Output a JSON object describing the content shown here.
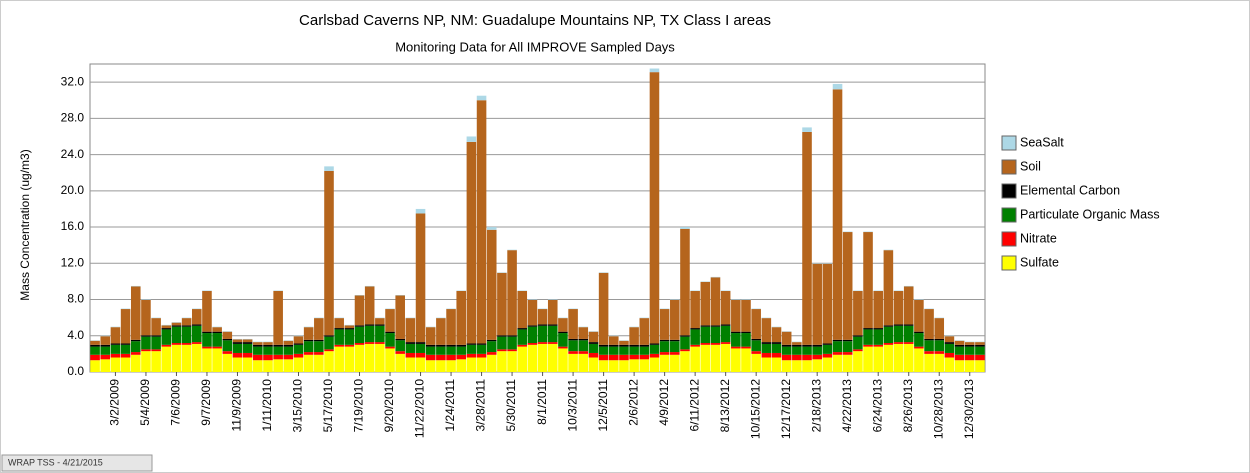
{
  "chart_data": {
    "type": "stacked_bar",
    "title": "Carlsbad Caverns NP, NM: Guadalupe Mountains NP, TX Class I areas",
    "subtitle": "Monitoring Data for All IMPROVE Sampled Days",
    "y_label": "Mass Concentration (ug/m3)",
    "footer": "WRAP TSS - 4/21/2015",
    "categories": [
      null,
      null,
      "3/2/2009",
      null,
      null,
      "5/4/2009",
      null,
      null,
      "7/6/2009",
      null,
      null,
      "9/7/2009",
      null,
      null,
      "11/9/2009",
      null,
      null,
      "1/11/2010",
      null,
      null,
      "3/15/2010",
      null,
      null,
      "5/17/2010",
      null,
      null,
      "7/19/2010",
      null,
      null,
      "9/20/2010",
      null,
      null,
      "11/22/2010",
      null,
      null,
      "1/24/2011",
      null,
      null,
      "3/28/2011",
      null,
      null,
      "5/30/2011",
      null,
      null,
      "8/1/2011",
      null,
      null,
      "10/3/2011",
      null,
      null,
      "12/5/2011",
      null,
      null,
      "2/6/2012",
      null,
      null,
      "4/9/2012",
      null,
      null,
      "6/11/2012",
      null,
      null,
      "8/13/2012",
      null,
      null,
      "10/15/2012",
      null,
      null,
      "12/17/2012",
      null,
      null,
      "2/18/2013",
      null,
      null,
      "4/22/2013",
      null,
      null,
      "6/24/2013",
      null,
      null,
      "8/26/2013",
      null,
      null,
      "10/28/2013",
      null,
      null,
      "12/30/2013",
      null
    ],
    "series": [
      {
        "name": "SeaSalt",
        "color": "#add8e6",
        "values": [
          0.05,
          0.05,
          0.05,
          0.05,
          0.05,
          0.05,
          0.05,
          0.05,
          0.05,
          0.05,
          0.05,
          0.05,
          0.05,
          0.05,
          0.05,
          0.05,
          0.05,
          0.05,
          0.05,
          0.05,
          0.05,
          0.05,
          0.05,
          0.5,
          0.05,
          0.05,
          0.05,
          0.05,
          0.05,
          0.05,
          0.05,
          0.05,
          0.5,
          0.05,
          0.05,
          0.05,
          0.05,
          0.6,
          0.5,
          0.3,
          0.05,
          0.05,
          0.05,
          0.05,
          0.05,
          0.05,
          0.05,
          0.05,
          0.05,
          0.05,
          0.05,
          0.05,
          0.05,
          0.05,
          0.05,
          0.4,
          0.05,
          0.05,
          0.2,
          0.05,
          0.05,
          0.05,
          0.05,
          0.05,
          0.05,
          0.05,
          0.05,
          0.05,
          0.05,
          0.05,
          0.5,
          0.05,
          0.05,
          0.6,
          0.05,
          0.05,
          0.05,
          0.05,
          0.05,
          0.05,
          0.05,
          0.05,
          0.05,
          0.05,
          0.05,
          0.05,
          0.05,
          0.05
        ]
      },
      {
        "name": "Soil",
        "color": "#b5651d",
        "values": [
          0.45,
          0.95,
          1.8,
          3.8,
          5.9,
          3.9,
          1.9,
          0.3,
          0.3,
          0.8,
          1.7,
          4.5,
          0.5,
          0.8,
          0.3,
          0.3,
          0.3,
          0.3,
          5.95,
          0.45,
          0.8,
          1.4,
          2.4,
          18.15,
          1.1,
          0.3,
          3.3,
          4.2,
          0.7,
          2.5,
          4.8,
          2.65,
          14.2,
          1.95,
          2.95,
          3.95,
          5.95,
          22.25,
          26.85,
          12.15,
          6.9,
          9.4,
          4.1,
          2.8,
          1.7,
          2.7,
          1.5,
          3.3,
          1.3,
          1.15,
          7.95,
          0.95,
          0.45,
          1.95,
          2.95,
          29.95,
          3.4,
          4.4,
          11.75,
          4.1,
          4.8,
          5.3,
          3.7,
          3.5,
          3.5,
          3.3,
          2.65,
          1.65,
          1.45,
          0.3,
          23.5,
          8.95,
          8.8,
          27.65,
          11.9,
          4.9,
          10.6,
          4.1,
          8.3,
          3.7,
          4.2,
          3.5,
          3.3,
          2.3,
          0.65,
          0.45,
          0.3,
          0.3
        ]
      },
      {
        "name": "Elemental Carbon",
        "color": "#000000",
        "values": [
          0.2,
          0.2,
          0.15,
          0.15,
          0.15,
          0.15,
          0.15,
          0.15,
          0.15,
          0.15,
          0.15,
          0.15,
          0.15,
          0.15,
          0.2,
          0.2,
          0.2,
          0.2,
          0.2,
          0.2,
          0.15,
          0.15,
          0.15,
          0.15,
          0.15,
          0.15,
          0.15,
          0.15,
          0.15,
          0.15,
          0.15,
          0.2,
          0.2,
          0.2,
          0.2,
          0.2,
          0.2,
          0.15,
          0.15,
          0.15,
          0.15,
          0.15,
          0.15,
          0.15,
          0.15,
          0.15,
          0.15,
          0.15,
          0.15,
          0.2,
          0.2,
          0.2,
          0.2,
          0.2,
          0.2,
          0.15,
          0.15,
          0.15,
          0.15,
          0.15,
          0.15,
          0.15,
          0.15,
          0.15,
          0.15,
          0.15,
          0.2,
          0.2,
          0.2,
          0.2,
          0.2,
          0.2,
          0.15,
          0.15,
          0.15,
          0.15,
          0.15,
          0.15,
          0.15,
          0.15,
          0.15,
          0.15,
          0.15,
          0.15,
          0.2,
          0.2,
          0.2,
          0.2
        ]
      },
      {
        "name": "Particulate Organic Mass",
        "color": "#008000",
        "values": [
          0.9,
          0.9,
          1.0,
          1.0,
          1.2,
          1.4,
          1.4,
          1.7,
          1.8,
          1.8,
          1.8,
          1.5,
          1.5,
          1.2,
          1.0,
          1.0,
          0.9,
          0.9,
          0.9,
          0.9,
          1.0,
          1.2,
          1.2,
          1.4,
          1.7,
          1.7,
          1.8,
          1.8,
          1.8,
          1.5,
          1.2,
          1.0,
          1.0,
          0.9,
          0.9,
          0.9,
          0.9,
          1.0,
          1.0,
          1.2,
          1.4,
          1.4,
          1.7,
          1.8,
          1.8,
          1.8,
          1.5,
          1.2,
          1.2,
          1.0,
          0.9,
          0.9,
          0.9,
          0.9,
          0.9,
          1.0,
          1.2,
          1.2,
          1.4,
          1.7,
          1.8,
          1.8,
          1.8,
          1.5,
          1.5,
          1.2,
          1.0,
          1.0,
          0.9,
          0.9,
          0.9,
          0.9,
          1.0,
          1.2,
          1.2,
          1.4,
          1.7,
          1.7,
          1.8,
          1.8,
          1.8,
          1.5,
          1.2,
          1.2,
          1.0,
          0.9,
          0.9,
          0.9
        ]
      },
      {
        "name": "Nitrate",
        "color": "#ff0000",
        "values": [
          0.6,
          0.5,
          0.4,
          0.4,
          0.3,
          0.2,
          0.2,
          0.2,
          0.2,
          0.2,
          0.2,
          0.2,
          0.2,
          0.3,
          0.5,
          0.5,
          0.6,
          0.6,
          0.5,
          0.5,
          0.4,
          0.3,
          0.3,
          0.2,
          0.2,
          0.2,
          0.2,
          0.2,
          0.2,
          0.2,
          0.3,
          0.5,
          0.5,
          0.6,
          0.6,
          0.6,
          0.5,
          0.4,
          0.4,
          0.3,
          0.2,
          0.2,
          0.2,
          0.2,
          0.2,
          0.2,
          0.2,
          0.3,
          0.3,
          0.5,
          0.6,
          0.6,
          0.6,
          0.5,
          0.5,
          0.4,
          0.3,
          0.3,
          0.2,
          0.2,
          0.2,
          0.2,
          0.2,
          0.2,
          0.2,
          0.3,
          0.5,
          0.5,
          0.6,
          0.6,
          0.6,
          0.5,
          0.4,
          0.3,
          0.3,
          0.2,
          0.2,
          0.2,
          0.2,
          0.2,
          0.2,
          0.2,
          0.3,
          0.3,
          0.5,
          0.6,
          0.6,
          0.6
        ]
      },
      {
        "name": "Sulfate",
        "color": "#ffff00",
        "values": [
          1.3,
          1.4,
          1.6,
          1.6,
          1.9,
          2.3,
          2.3,
          2.8,
          3.0,
          3.0,
          3.1,
          2.6,
          2.6,
          2.0,
          1.6,
          1.6,
          1.3,
          1.3,
          1.4,
          1.4,
          1.6,
          1.9,
          1.9,
          2.3,
          2.8,
          2.8,
          3.0,
          3.1,
          3.1,
          2.6,
          2.0,
          1.6,
          1.6,
          1.3,
          1.3,
          1.3,
          1.4,
          1.6,
          1.6,
          1.9,
          2.3,
          2.3,
          2.8,
          3.0,
          3.1,
          3.1,
          2.6,
          2.0,
          2.0,
          1.6,
          1.3,
          1.3,
          1.3,
          1.4,
          1.4,
          1.6,
          1.9,
          1.9,
          2.3,
          2.8,
          3.0,
          3.0,
          3.1,
          2.6,
          2.6,
          2.0,
          1.6,
          1.6,
          1.3,
          1.3,
          1.3,
          1.4,
          1.6,
          1.9,
          1.9,
          2.3,
          2.8,
          2.8,
          3.0,
          3.1,
          3.1,
          2.6,
          2.0,
          2.0,
          1.6,
          1.3,
          1.3,
          1.3
        ]
      }
    ],
    "ylim": [
      0,
      34
    ],
    "yticks": [
      {
        "value": 0,
        "label": "0.0"
      },
      {
        "value": 4,
        "label": "4.0"
      },
      {
        "value": 8,
        "label": "8.0"
      },
      {
        "value": 12,
        "label": "12.0"
      },
      {
        "value": 16,
        "label": "16.0"
      },
      {
        "value": 20,
        "label": "20.0"
      },
      {
        "value": 24,
        "label": "24.0"
      },
      {
        "value": 28,
        "label": "28.0"
      },
      {
        "value": 32,
        "label": "32.0"
      }
    ],
    "grid": true,
    "legend": "right"
  }
}
